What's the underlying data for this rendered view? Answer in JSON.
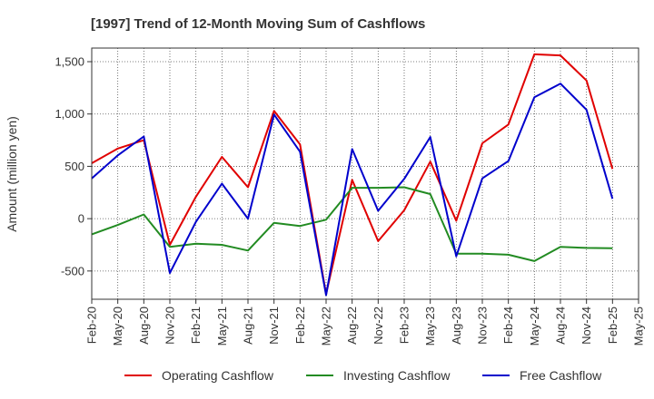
{
  "chart_data": {
    "type": "line",
    "title": "[1997]  Trend of 12-Month Moving Sum of Cashflows",
    "xlabel": "",
    "ylabel": "Amount (million yen)",
    "ylim": [
      -770,
      1630
    ],
    "yticks": [
      -500,
      0,
      500,
      1000,
      1500
    ],
    "ytick_labels": [
      "-500",
      "0",
      "500",
      "1,000",
      "1,500"
    ],
    "x": [
      "Feb-20",
      "May-20",
      "Aug-20",
      "Nov-20",
      "Feb-21",
      "May-21",
      "Aug-21",
      "Nov-21",
      "Feb-22",
      "May-22",
      "Aug-22",
      "Nov-22",
      "Feb-23",
      "May-23",
      "Aug-23",
      "Nov-23",
      "Feb-24",
      "May-24",
      "Aug-24",
      "Nov-24",
      "Feb-25",
      "May-25"
    ],
    "grid": true,
    "legend": "bottom",
    "series": [
      {
        "name": "Operating Cashflow",
        "color": "#e00000",
        "values": [
          530,
          670,
          750,
          -250,
          210,
          590,
          300,
          1030,
          710,
          -720,
          370,
          -215,
          80,
          545,
          -20,
          720,
          900,
          1570,
          1560,
          1320,
          475,
          null
        ]
      },
      {
        "name": "Investing Cashflow",
        "color": "#228b22",
        "values": [
          -150,
          -60,
          40,
          -270,
          -240,
          -250,
          -305,
          -40,
          -70,
          -10,
          295,
          295,
          300,
          235,
          -335,
          -335,
          -345,
          -405,
          -270,
          -280,
          -282,
          null
        ]
      },
      {
        "name": "Free Cashflow",
        "color": "#0000cc",
        "values": [
          385,
          605,
          785,
          -520,
          -30,
          335,
          0,
          995,
          640,
          -730,
          665,
          75,
          380,
          780,
          -360,
          385,
          550,
          1160,
          1290,
          1040,
          190,
          null
        ]
      }
    ]
  }
}
